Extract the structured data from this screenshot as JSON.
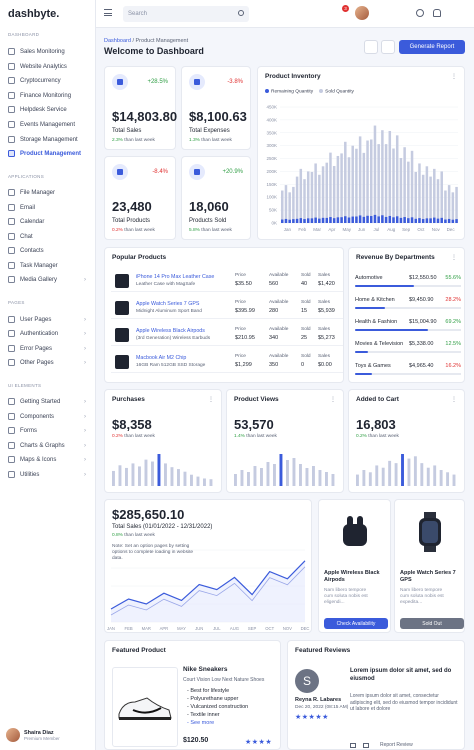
{
  "app": {
    "logo": "dashbyte."
  },
  "sidebar": {
    "sections": [
      {
        "title": "DASHBOARD",
        "items": [
          {
            "label": "Sales Monitoring"
          },
          {
            "label": "Website Analytics"
          },
          {
            "label": "Cryptocurrency"
          },
          {
            "label": "Finance Monitoring"
          },
          {
            "label": "Helpdesk Service"
          },
          {
            "label": "Events Management"
          },
          {
            "label": "Storage Management"
          },
          {
            "label": "Product Management",
            "active": true
          }
        ]
      },
      {
        "title": "APPLICATIONS",
        "items": [
          {
            "label": "File Manager"
          },
          {
            "label": "Email"
          },
          {
            "label": "Calendar"
          },
          {
            "label": "Chat"
          },
          {
            "label": "Contacts"
          },
          {
            "label": "Task Manager"
          },
          {
            "label": "Media Gallery"
          }
        ]
      },
      {
        "title": "PAGES",
        "items": [
          {
            "label": "User Pages"
          },
          {
            "label": "Authentication"
          },
          {
            "label": "Error Pages"
          },
          {
            "label": "Other Pages"
          }
        ]
      },
      {
        "title": "UI ELEMENTS",
        "items": [
          {
            "label": "Getting Started"
          },
          {
            "label": "Components"
          },
          {
            "label": "Forms"
          },
          {
            "label": "Charts & Graphs"
          },
          {
            "label": "Maps & Icons"
          },
          {
            "label": "Utilities"
          }
        ]
      }
    ],
    "user": {
      "name": "Shaira Diaz",
      "role": "Premium Member"
    }
  },
  "topbar": {
    "search_placeholder": "Search",
    "notification_count": "3"
  },
  "header": {
    "breadcrumb_root": "Dashboard",
    "breadcrumb_sep": "/",
    "breadcrumb_current": "Product Management",
    "title": "Welcome to Dashboard",
    "generate_label": "Generate Report"
  },
  "stats": [
    {
      "change": "+28.5%",
      "trend": "up",
      "value": "$14,803.80",
      "label": "Total Sales",
      "sub_pct": "2.3%",
      "sub_text": "than last week",
      "sub_trend": "up"
    },
    {
      "change": "-3.8%",
      "trend": "down",
      "value": "$8,100.63",
      "label": "Total Expenses",
      "sub_pct": "1.3%",
      "sub_text": "than last week",
      "sub_trend": "up"
    },
    {
      "change": "-8.4%",
      "trend": "down",
      "value": "23,480",
      "label": "Total Products",
      "sub_pct": "0.2%",
      "sub_text": "than last week",
      "sub_trend": "down"
    },
    {
      "change": "+20.9%",
      "trend": "up",
      "value": "18,060",
      "label": "Products Sold",
      "sub_pct": "5.8%",
      "sub_text": "than last week",
      "sub_trend": "up"
    }
  ],
  "inventory": {
    "title": "Product Inventory",
    "legend": [
      "Remaining Quantity",
      "Sold Quantity"
    ],
    "colors": {
      "remaining": "#3b5bdb",
      "sold": "#c5cbe0"
    }
  },
  "chart_data": [
    {
      "type": "bar",
      "title": "Product Inventory",
      "categories": [
        "Jan",
        "Feb",
        "Mar",
        "Apr",
        "May",
        "Jun",
        "Jul",
        "Aug",
        "Sep",
        "Oct",
        "Nov",
        "Dec"
      ],
      "ylim": [
        0,
        450
      ],
      "yticks": [
        "0K",
        "50K",
        "100K",
        "150K",
        "200K",
        "250K",
        "300K",
        "350K",
        "400K",
        "450K"
      ],
      "series": [
        {
          "name": "Remaining Quantity",
          "values": [
            15,
            18,
            20,
            22,
            25,
            28,
            30,
            26,
            22,
            18,
            20,
            15
          ]
        },
        {
          "name": "Sold Quantity",
          "values": [
            140,
            200,
            220,
            260,
            300,
            320,
            360,
            340,
            280,
            220,
            200,
            140
          ]
        }
      ]
    },
    {
      "type": "line",
      "title": "$285,650.10",
      "categories": [
        "JAN",
        "FEB",
        "MAR",
        "APR",
        "MAY",
        "JUN",
        "JUL",
        "AUG",
        "SEP",
        "OCT",
        "NOV",
        "DEC"
      ],
      "series": [
        {
          "name": "Total Sales",
          "values": [
            18,
            32,
            25,
            40,
            30,
            52,
            45,
            62,
            38,
            70,
            60,
            85
          ]
        }
      ]
    }
  ],
  "popular": {
    "title": "Popular Products",
    "col_price": "Price",
    "col_available": "Available",
    "col_sold": "Sold",
    "col_sales": "Sales",
    "rows": [
      {
        "name": "iPhone 14 Pro Max Leather Case",
        "desc": "Leather Case with MagSafe",
        "price": "$35.50",
        "available": "560",
        "sold": "40",
        "sales": "$1,420"
      },
      {
        "name": "Apple Watch Series 7 GPS",
        "desc": "Midnight Aluminum Sport Band",
        "price": "$395.99",
        "available": "280",
        "sold": "15",
        "sales": "$5,939"
      },
      {
        "name": "Apple Wireless Black Airpods",
        "desc": "(3rd Generation) Wireless Earbuds",
        "price": "$210.95",
        "available": "340",
        "sold": "25",
        "sales": "$5,273"
      },
      {
        "name": "Macbook Air M2 Chip",
        "desc": "16GB Ram 512GB SSD Storage",
        "price": "$1,299",
        "available": "350",
        "sold": "0",
        "sales": "$0.00"
      }
    ]
  },
  "departments": {
    "title": "Revenue By Departments",
    "rows": [
      {
        "name": "Automotive",
        "amount": "$12,550.50",
        "pct": "55.6%",
        "trend": "up",
        "bar": 0.556
      },
      {
        "name": "Home & Kitchen",
        "amount": "$9,450.90",
        "pct": "28.2%",
        "trend": "down",
        "bar": 0.282
      },
      {
        "name": "Health & Fashion",
        "amount": "$15,004.90",
        "pct": "69.2%",
        "trend": "up",
        "bar": 0.692
      },
      {
        "name": "Movies & Television",
        "amount": "$5,338.00",
        "pct": "12.5%",
        "trend": "up",
        "bar": 0.125
      },
      {
        "name": "Toys & Games",
        "amount": "$4,965.40",
        "pct": "16.2%",
        "trend": "down",
        "bar": 0.162
      }
    ]
  },
  "mini": [
    {
      "title": "Purchases",
      "value": "$8,358",
      "pct": "0.2%",
      "sub": "than last week",
      "trend": "down",
      "bars": [
        40,
        55,
        48,
        60,
        52,
        70,
        65,
        85,
        60,
        50,
        45,
        38,
        30,
        25,
        20,
        18
      ]
    },
    {
      "title": "Product Views",
      "value": "53,570",
      "pct": "1.4%",
      "sub": "than last week",
      "trend": "up",
      "bars": [
        30,
        40,
        35,
        50,
        45,
        60,
        55,
        80,
        65,
        70,
        55,
        45,
        50,
        40,
        35,
        30
      ]
    },
    {
      "title": "Added to Cart",
      "value": "16,803",
      "pct": "0.2%",
      "sub": "than last week",
      "trend": "up",
      "bars": [
        25,
        35,
        30,
        45,
        40,
        55,
        50,
        70,
        60,
        65,
        50,
        40,
        45,
        35,
        30,
        25
      ]
    }
  ],
  "sales": {
    "value": "$285,650.10",
    "label": "Total Sales (01/01/2022 - 12/31/2022)",
    "pct": "0.8%",
    "sub": "than last week",
    "note": "Note: Set an option pages by setting options to complete loading in website data."
  },
  "offers": [
    {
      "title": "Apple Wireless Black Airpods",
      "desc": "Nam libero tempore cum soluta nobis est eligendi...",
      "button": "Check Availability",
      "btn_color": "#3b5bdb"
    },
    {
      "title": "Apple Watch Series 7 GPS",
      "desc": "Nam libero tempore cum soluta nobis est expedita...",
      "button": "Sold Out",
      "btn_color": "#6c7384"
    }
  ],
  "featured": {
    "title": "Featured Product",
    "name": "Nike Sneakers",
    "tagline": "Court Vision Low Next Nature Shoes",
    "bullets": [
      "- Best for lifestyle",
      "- Polyurethane upper",
      "- Vulcanized construction",
      "- Textile inner",
      "- See more"
    ],
    "price": "$120.50",
    "rating": "★★★★"
  },
  "review": {
    "title": "Featured Reviews",
    "initial": "S",
    "name": "Reyna R. Labares",
    "date": "Dec 20, 2022 (08:15 AM)",
    "stars": "★★★★★",
    "headline": "Lorem ipsum dolor sit amet, sed do eiusmod",
    "body": "Lorem ipsum dolor sit amet, consectetur adipiscing elit, sed do eiusmod tempor incididunt ut labore et dolore",
    "report": "Report Review"
  }
}
